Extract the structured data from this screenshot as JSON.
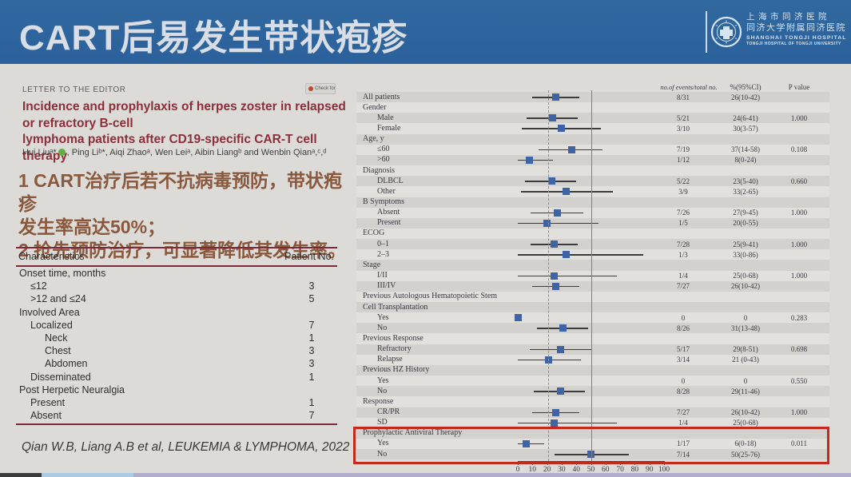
{
  "slide": {
    "title": "CART后易发生带状疱疹",
    "logo": {
      "line1": "上海市同济医院",
      "line2": "同济大学附属同济医院",
      "line3": "SHANGHAI TONGJI HOSPITAL",
      "line4": "TONGJI HOSPITAL OF TONGJI UNIVERSITY"
    },
    "citation": "Qian W.B, Liang A.B et al, LEUKEMIA & LYMPHOMA, 2022",
    "colors": {
      "titlebar_blue": "#2d64a0",
      "key_point_red": "#8a583c",
      "paper_title_maroon": "#8c2f3a",
      "marker_blue": "#3f64a6",
      "highlight_red": "#c8271e"
    }
  },
  "paper": {
    "kicker": "LETTER TO THE EDITOR",
    "badge_label": "Check for",
    "title_line1": "Incidence and prophylaxis of herpes zoster in relapsed or refractory B-cell",
    "title_line2": "lymphoma patients after CD19-specific CAR-T cell therapy",
    "authors_pre": "Hui Liuᵃ*",
    "authors_post": ", Ping Liᵇ*, Aiqi Zhaoᵃ, Wen Leiᵃ, Aibin Liangᵇ and Wenbin Qianᵃ,ᶜ,ᵈ"
  },
  "key_points": {
    "line1": "1 CART治疗后若不抗病毒预防，带状疱疹",
    "line2": "发生率高达50%；",
    "line3": "2 抢先预防治疗，可显著降低其发生率。"
  },
  "patient_table": {
    "col1": "Characteristics",
    "col2": "Patient No.",
    "rows": [
      {
        "label": "Onset time, months",
        "value": "",
        "indent": 0
      },
      {
        "label": "≤12",
        "value": "3",
        "indent": 1
      },
      {
        "label": ">12 and ≤24",
        "value": "5",
        "indent": 1
      },
      {
        "label": "Involved Area",
        "value": "",
        "indent": 0
      },
      {
        "label": "Localized",
        "value": "7",
        "indent": 1
      },
      {
        "label": "Neck",
        "value": "1",
        "indent": 2
      },
      {
        "label": "Chest",
        "value": "3",
        "indent": 2
      },
      {
        "label": "Abdomen",
        "value": "3",
        "indent": 2
      },
      {
        "label": "Disseminated",
        "value": "1",
        "indent": 1
      },
      {
        "label": "Post Herpetic Neuralgia",
        "value": "",
        "indent": 0
      },
      {
        "label": "Present",
        "value": "1",
        "indent": 1
      },
      {
        "label": "Absent",
        "value": "7",
        "indent": 1
      }
    ]
  },
  "chart_data": {
    "type": "forest",
    "columns": [
      "no.of events/total no.",
      "%(95%CI)",
      "P value"
    ],
    "x_axis": {
      "range": [
        0,
        100
      ],
      "ticks": [
        0,
        10,
        20,
        30,
        40,
        50,
        60,
        70,
        80,
        90,
        100
      ]
    },
    "ref_lines": {
      "dashed": 21,
      "solid": 50
    },
    "rows": [
      {
        "label": "All patients",
        "indent": 0,
        "events": "8/31",
        "ci": "26(10-42)",
        "p": "",
        "est": 26,
        "lo": 10,
        "hi": 42
      },
      {
        "label": "Gender",
        "indent": 0
      },
      {
        "label": "Male",
        "indent": 1,
        "events": "5/21",
        "ci": "24(6-41)",
        "p": "1.000",
        "est": 24,
        "lo": 6,
        "hi": 41
      },
      {
        "label": "Female",
        "indent": 1,
        "events": "3/10",
        "ci": "30(3-57)",
        "p": "",
        "est": 30,
        "lo": 3,
        "hi": 57
      },
      {
        "label": "Age, y",
        "indent": 0
      },
      {
        "label": "≤60",
        "indent": 1,
        "events": "7/19",
        "ci": "37(14-58)",
        "p": "0.108",
        "est": 37,
        "lo": 14,
        "hi": 58
      },
      {
        "label": ">60",
        "indent": 1,
        "events": "1/12",
        "ci": "8(0-24)",
        "p": "",
        "est": 8,
        "lo": 0,
        "hi": 24
      },
      {
        "label": "Diagnosis",
        "indent": 0
      },
      {
        "label": "DLBCL",
        "indent": 1,
        "events": "5/22",
        "ci": "23(5-40)",
        "p": "0.660",
        "est": 23,
        "lo": 5,
        "hi": 40
      },
      {
        "label": "Other",
        "indent": 1,
        "events": "3/9",
        "ci": "33(2-65)",
        "p": "",
        "est": 33,
        "lo": 2,
        "hi": 65
      },
      {
        "label": "B Symptoms",
        "indent": 0
      },
      {
        "label": "Absent",
        "indent": 1,
        "events": "7/26",
        "ci": "27(9-45)",
        "p": "1.000",
        "est": 27,
        "lo": 9,
        "hi": 45
      },
      {
        "label": "Present",
        "indent": 1,
        "events": "1/5",
        "ci": "20(0-55)",
        "p": "",
        "est": 20,
        "lo": 0,
        "hi": 55
      },
      {
        "label": "ECOG",
        "indent": 0
      },
      {
        "label": "0–1",
        "indent": 1,
        "events": "7/28",
        "ci": "25(9-41)",
        "p": "1.000",
        "est": 25,
        "lo": 9,
        "hi": 41
      },
      {
        "label": "2–3",
        "indent": 1,
        "events": "1/3",
        "ci": "33(0-86)",
        "p": "",
        "est": 33,
        "lo": 0,
        "hi": 86
      },
      {
        "label": "Stage",
        "indent": 0
      },
      {
        "label": "I/II",
        "indent": 1,
        "events": "1/4",
        "ci": "25(0-68)",
        "p": "1.000",
        "est": 25,
        "lo": 0,
        "hi": 68
      },
      {
        "label": "III/IV",
        "indent": 1,
        "events": "7/27",
        "ci": "26(10-42)",
        "p": "",
        "est": 26,
        "lo": 10,
        "hi": 42
      },
      {
        "label": "Previous Autologous Hematopoietic Stem",
        "indent": 0
      },
      {
        "label": "Cell Transplantation",
        "indent": 0
      },
      {
        "label": "Yes",
        "indent": 1,
        "events": "0",
        "ci": "0",
        "p": "0.283",
        "est": 0,
        "marker": "point"
      },
      {
        "label": "No",
        "indent": 1,
        "events": "8/26",
        "ci": "31(13-48)",
        "p": "",
        "est": 31,
        "lo": 13,
        "hi": 48
      },
      {
        "label": "Previous Response",
        "indent": 0
      },
      {
        "label": "Refractory",
        "indent": 1,
        "events": "5/17",
        "ci": "29(8-51)",
        "p": "0.698",
        "est": 29,
        "lo": 8,
        "hi": 51
      },
      {
        "label": "Relapse",
        "indent": 1,
        "events": "3/14",
        "ci": "21 (0-43)",
        "p": "",
        "est": 21,
        "lo": 0,
        "hi": 43
      },
      {
        "label": "Previous HZ History",
        "indent": 0
      },
      {
        "label": "Yes",
        "indent": 1,
        "events": "0",
        "ci": "0",
        "p": "0.550",
        "marker": "none"
      },
      {
        "label": "No",
        "indent": 1,
        "events": "8/28",
        "ci": "29(11-46)",
        "p": "",
        "est": 29,
        "lo": 11,
        "hi": 46
      },
      {
        "label": "Response",
        "indent": 0
      },
      {
        "label": "CR/PR",
        "indent": 1,
        "events": "7/27",
        "ci": "26(10-42)",
        "p": "1.000",
        "est": 26,
        "lo": 10,
        "hi": 42
      },
      {
        "label": "SD",
        "indent": 1,
        "events": "1/4",
        "ci": "25(0-68)",
        "p": "",
        "est": 25,
        "lo": 0,
        "hi": 68
      },
      {
        "label": "Prophylactic Antiviral Therapy",
        "indent": 0
      },
      {
        "label": "Yes",
        "indent": 1,
        "events": "1/17",
        "ci": "6(0-18)",
        "p": "0.011",
        "est": 6,
        "lo": 0,
        "hi": 18
      },
      {
        "label": "No",
        "indent": 1,
        "events": "7/14",
        "ci": "50(25-76)",
        "p": "",
        "est": 50,
        "lo": 25,
        "hi": 76
      }
    ]
  }
}
